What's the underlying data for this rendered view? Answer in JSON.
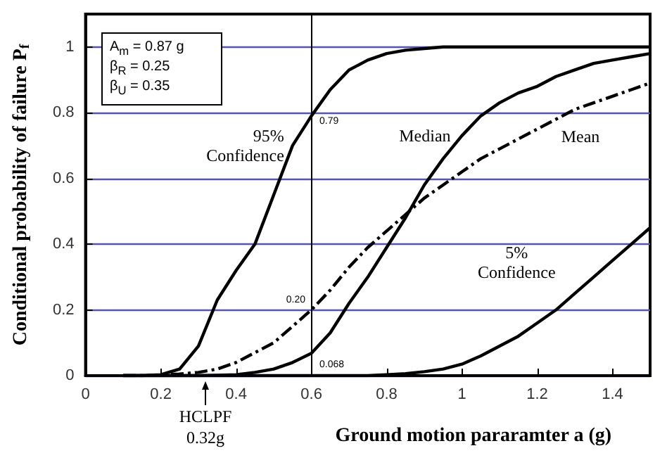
{
  "chart_data": {
    "type": "line",
    "xlabel": "Ground motion pararamter a (g)",
    "ylabel": "Conditional probability of failure P$_{f}$",
    "x": [
      0.1,
      0.15,
      0.2,
      0.25,
      0.3,
      0.35,
      0.4,
      0.45,
      0.5,
      0.55,
      0.6,
      0.65,
      0.7,
      0.75,
      0.8,
      0.85,
      0.9,
      0.95,
      1.0,
      1.05,
      1.1,
      1.15,
      1.2,
      1.25,
      1.3,
      1.35,
      1.4,
      1.45,
      1.5
    ],
    "series": [
      {
        "name": "95% Confidence",
        "color": "#000000",
        "values": [
          0,
          0,
          0.003,
          0.02,
          0.09,
          0.23,
          0.32,
          0.4,
          0.55,
          0.7,
          0.79,
          0.87,
          0.93,
          0.96,
          0.98,
          0.99,
          0.995,
          1,
          1,
          1,
          1,
          1,
          1,
          1,
          1,
          1,
          1,
          1,
          1
        ]
      },
      {
        "name": "Median",
        "color": "#000000",
        "values": [
          0,
          0,
          0,
          0,
          0,
          0.001,
          0.003,
          0.01,
          0.02,
          0.04,
          0.068,
          0.13,
          0.22,
          0.3,
          0.39,
          0.48,
          0.58,
          0.66,
          0.73,
          0.79,
          0.83,
          0.86,
          0.88,
          0.91,
          0.93,
          0.95,
          0.96,
          0.97,
          0.98
        ]
      },
      {
        "name": "Mean",
        "color": "#000000",
        "line_style": "dashed",
        "values": [
          0,
          0,
          0.002,
          0.005,
          0.01,
          0.02,
          0.04,
          0.07,
          0.1,
          0.15,
          0.2,
          0.26,
          0.33,
          0.39,
          0.44,
          0.49,
          0.54,
          0.58,
          0.62,
          0.66,
          0.69,
          0.72,
          0.75,
          0.78,
          0.81,
          0.83,
          0.85,
          0.87,
          0.89
        ]
      },
      {
        "name": "5% Confidence",
        "color": "#000000",
        "values": [
          0,
          0,
          0,
          0,
          0,
          0,
          0,
          0,
          0,
          0,
          0,
          0,
          0,
          0,
          0.003,
          0.006,
          0.012,
          0.02,
          0.035,
          0.06,
          0.09,
          0.12,
          0.16,
          0.2,
          0.25,
          0.3,
          0.35,
          0.4,
          0.45
        ]
      }
    ],
    "xlim": [
      0,
      1.5
    ],
    "xticks": [
      0,
      0.2,
      0.4,
      0.6,
      0.8,
      1,
      1.2,
      1.4
    ],
    "ylim": [
      0,
      1.1
    ],
    "yticks": [
      0,
      0.2,
      0.4,
      0.6,
      0.8,
      1
    ],
    "grid": "y",
    "legend": false,
    "marker": "none",
    "line_style": "solid",
    "ref_lines": [
      {
        "axis": "x",
        "value": 0.6,
        "color": "#000000"
      }
    ],
    "annotations": [
      "A$_{m}$ = 0.87 g",
      "β$_{R}$ = 0.25",
      "β$_{U}$ = 0.35",
      "0.79",
      "0.20",
      "0.068",
      "HCLPF\n0.32g"
    ]
  }
}
